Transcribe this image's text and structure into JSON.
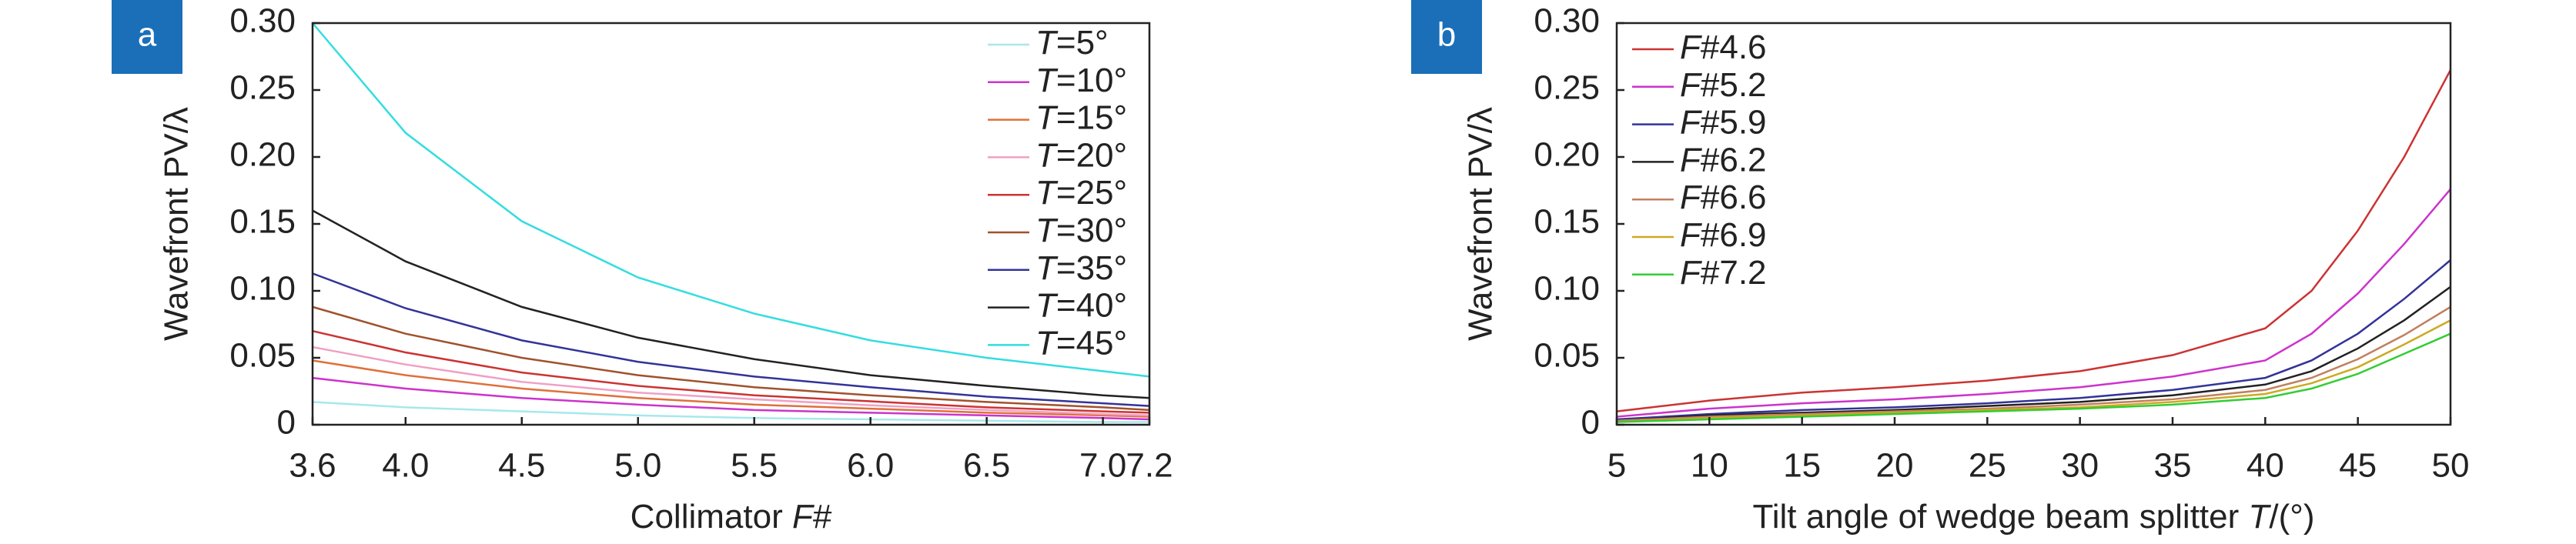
{
  "chart_data": [
    {
      "type": "line",
      "panel": "a",
      "xlabel": "Collimator F#",
      "ylabel": "Wavefront PV/λ",
      "x": [
        3.6,
        4.0,
        4.5,
        5.0,
        5.5,
        6.0,
        6.5,
        7.0,
        7.2
      ],
      "xlim": [
        3.6,
        7.2
      ],
      "xticks": [
        3.6,
        {
          "value": 4,
          "label": "4.0"
        },
        4.5,
        {
          "value": 5,
          "label": "5.0"
        },
        5.5,
        {
          "value": 6,
          "label": "6.0"
        },
        6.5,
        {
          "value": 7,
          "label": "7.0"
        },
        7.2
      ],
      "ylim": [
        0,
        0.3
      ],
      "yticks": [
        0,
        0.05,
        {
          "value": 0.1,
          "label": "0.10"
        },
        0.15,
        {
          "value": 0.2,
          "label": "0.20"
        },
        0.25,
        {
          "value": 0.3,
          "label": "0.30"
        }
      ],
      "legend": "upper right",
      "series": [
        {
          "name": "T=5°",
          "color": "#a6e8ec",
          "values": [
            0.017,
            0.013,
            0.01,
            0.007,
            0.005,
            0.004,
            0.003,
            0.002,
            0.002
          ]
        },
        {
          "name": "T=10°",
          "color": "#cc33cc",
          "values": [
            0.035,
            0.027,
            0.02,
            0.015,
            0.011,
            0.009,
            0.007,
            0.005,
            0.004
          ]
        },
        {
          "name": "T=15°",
          "color": "#e0703c",
          "values": [
            0.048,
            0.037,
            0.027,
            0.02,
            0.015,
            0.012,
            0.009,
            0.007,
            0.006
          ]
        },
        {
          "name": "T=20°",
          "color": "#f0a0c4",
          "values": [
            0.058,
            0.045,
            0.032,
            0.024,
            0.019,
            0.0145,
            0.011,
            0.008,
            0.007
          ]
        },
        {
          "name": "T=25°",
          "color": "#cc3333",
          "values": [
            0.07,
            0.054,
            0.039,
            0.029,
            0.022,
            0.0175,
            0.013,
            0.01,
            0.009
          ]
        },
        {
          "name": "T=30°",
          "color": "#a0522d",
          "values": [
            0.088,
            0.068,
            0.05,
            0.037,
            0.028,
            0.022,
            0.017,
            0.013,
            0.011
          ]
        },
        {
          "name": "T=35°",
          "color": "#333399",
          "values": [
            0.113,
            0.087,
            0.063,
            0.047,
            0.036,
            0.028,
            0.021,
            0.016,
            0.014
          ]
        },
        {
          "name": "T=40°",
          "color": "#222222",
          "values": [
            0.16,
            0.122,
            0.088,
            0.065,
            0.049,
            0.037,
            0.029,
            0.022,
            0.02
          ]
        },
        {
          "name": "T=45°",
          "color": "#33dde0",
          "values": [
            0.3,
            0.218,
            0.152,
            0.11,
            0.083,
            0.063,
            0.05,
            0.04,
            0.036
          ]
        }
      ]
    },
    {
      "type": "line",
      "panel": "b",
      "xlabel": "Tilt angle of wedge beam splitter T/(°)",
      "ylabel": "Wavefront PV/λ",
      "x": [
        5,
        10,
        15,
        20,
        25,
        30,
        35,
        40,
        42.5,
        45,
        47.5,
        50
      ],
      "xlim": [
        5,
        50
      ],
      "xticks": [
        5,
        10,
        15,
        20,
        25,
        30,
        35,
        40,
        45,
        50
      ],
      "ylim": [
        0,
        0.3
      ],
      "yticks": [
        0,
        0.05,
        {
          "value": 0.1,
          "label": "0.10"
        },
        0.15,
        {
          "value": 0.2,
          "label": "0.20"
        },
        0.25,
        {
          "value": 0.3,
          "label": "0.30"
        }
      ],
      "legend": "upper left",
      "series": [
        {
          "name": "F#4.6",
          "color": "#cc3333",
          "values": [
            0.01,
            0.018,
            0.024,
            0.028,
            0.033,
            0.04,
            0.052,
            0.072,
            0.1,
            0.145,
            0.2,
            0.265
          ]
        },
        {
          "name": "F#5.2",
          "color": "#cc33cc",
          "values": [
            0.006,
            0.012,
            0.016,
            0.019,
            0.023,
            0.028,
            0.036,
            0.048,
            0.068,
            0.098,
            0.135,
            0.176
          ]
        },
        {
          "name": "F#5.9",
          "color": "#333399",
          "values": [
            0.004,
            0.008,
            0.011,
            0.013,
            0.016,
            0.02,
            0.026,
            0.035,
            0.048,
            0.068,
            0.094,
            0.123
          ]
        },
        {
          "name": "F#6.2",
          "color": "#222222",
          "values": [
            0.003,
            0.007,
            0.009,
            0.011,
            0.014,
            0.017,
            0.022,
            0.03,
            0.04,
            0.057,
            0.078,
            0.103
          ]
        },
        {
          "name": "F#6.6",
          "color": "#c08060",
          "values": [
            0.003,
            0.006,
            0.008,
            0.01,
            0.012,
            0.015,
            0.019,
            0.026,
            0.035,
            0.049,
            0.067,
            0.088
          ]
        },
        {
          "name": "F#6.9",
          "color": "#ccaa22",
          "values": [
            0.002,
            0.005,
            0.007,
            0.009,
            0.011,
            0.013,
            0.017,
            0.023,
            0.031,
            0.043,
            0.06,
            0.078
          ]
        },
        {
          "name": "F#7.2",
          "color": "#33cc33",
          "values": [
            0.002,
            0.004,
            0.006,
            0.008,
            0.01,
            0.012,
            0.015,
            0.02,
            0.027,
            0.038,
            0.053,
            0.068
          ]
        }
      ]
    }
  ]
}
